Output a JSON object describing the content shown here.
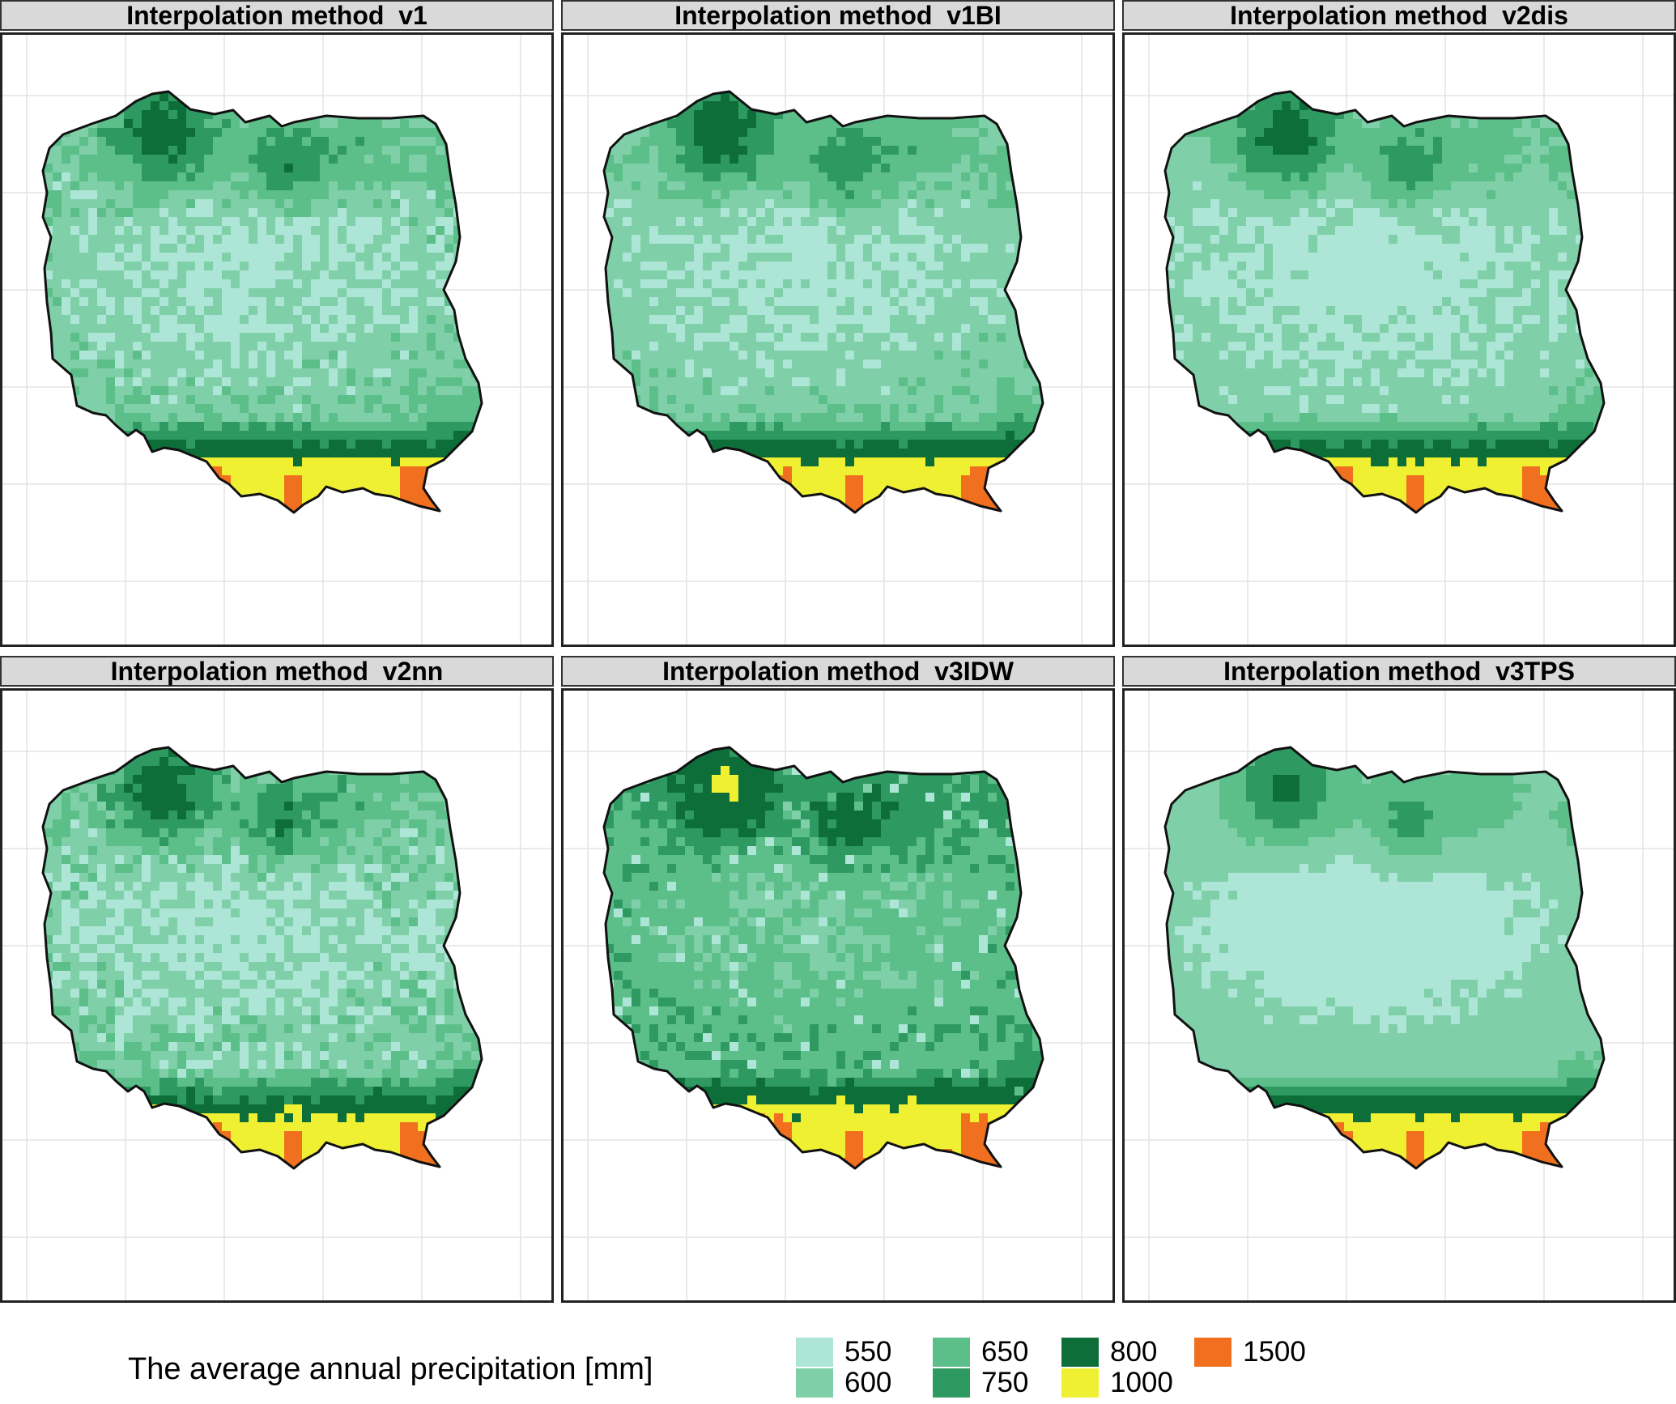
{
  "panels": [
    {
      "title": "Interpolation method  v1",
      "variant": "v1"
    },
    {
      "title": "Interpolation method  v1BI",
      "variant": "v1BI"
    },
    {
      "title": "Interpolation method  v2dis",
      "variant": "v2dis"
    },
    {
      "title": "Interpolation method  v2nn",
      "variant": "v2nn"
    },
    {
      "title": "Interpolation method  v3IDW",
      "variant": "v3IDW"
    },
    {
      "title": "Interpolation method  v3TPS",
      "variant": "v3TPS"
    }
  ],
  "legend": {
    "title": "The average annual precipitation [mm]",
    "classes": [
      {
        "label": "550",
        "color": "#ade6d6"
      },
      {
        "label": "600",
        "color": "#7fd0a8"
      },
      {
        "label": "650",
        "color": "#5cbf8a"
      },
      {
        "label": "750",
        "color": "#2e9a62"
      },
      {
        "label": "800",
        "color": "#0e6e3a"
      },
      {
        "label": "1000",
        "color": "#f0f032"
      },
      {
        "label": "1500",
        "color": "#f07020"
      }
    ]
  }
}
